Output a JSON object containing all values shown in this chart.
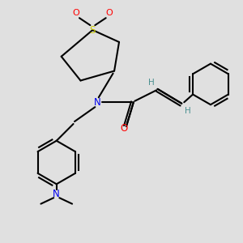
{
  "bg_color": "#e0e0e0",
  "atom_colors": {
    "N": "#0000ee",
    "O": "#ff0000",
    "S": "#cccc00",
    "C": "#000000",
    "H": "#4a9090"
  },
  "bond_color": "#000000",
  "bond_width": 1.5
}
